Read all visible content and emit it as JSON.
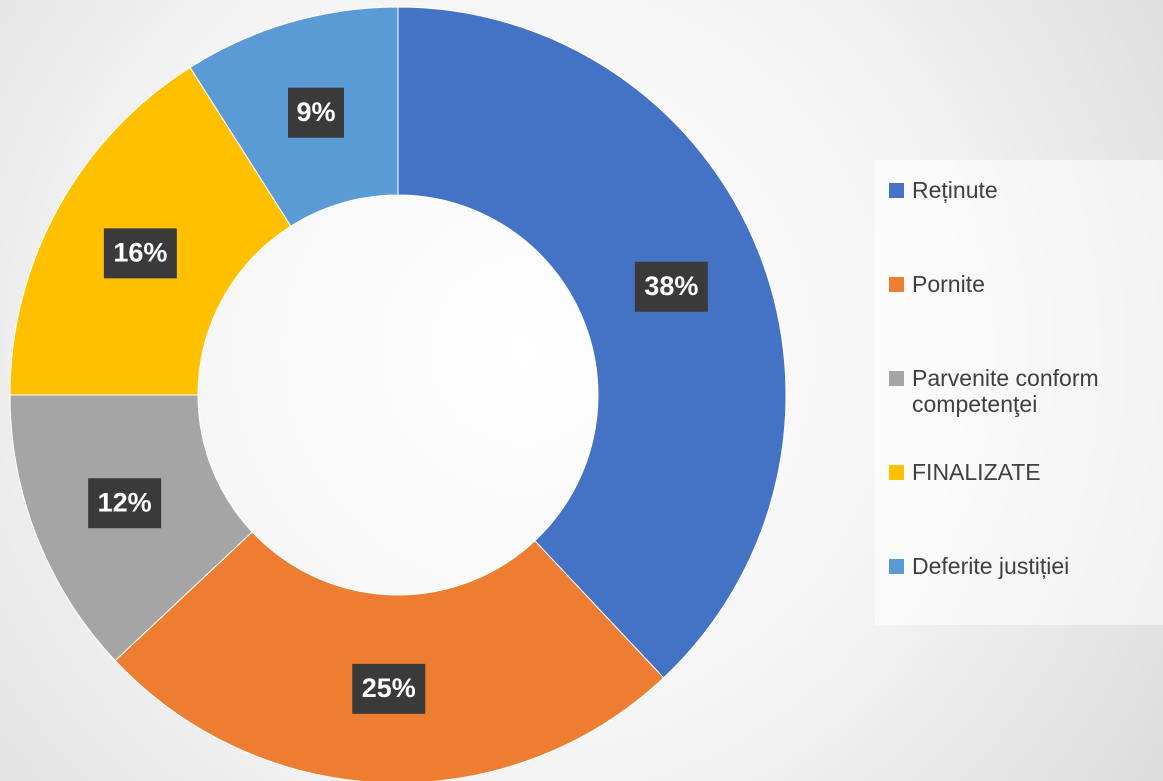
{
  "chart_data": {
    "type": "donut",
    "categories": [
      "Reținute",
      "Pornite",
      "Parvenite conform competenţei",
      "FINALIZATE",
      "Deferite justiției"
    ],
    "values": [
      38,
      25,
      12,
      16,
      9
    ],
    "value_labels": [
      "38%",
      "25%",
      "12%",
      "16%",
      "9%"
    ],
    "colors": [
      "#4472c4",
      "#ed7d31",
      "#a5a5a5",
      "#ffc000",
      "#5b9bd5"
    ],
    "legend": "right"
  }
}
